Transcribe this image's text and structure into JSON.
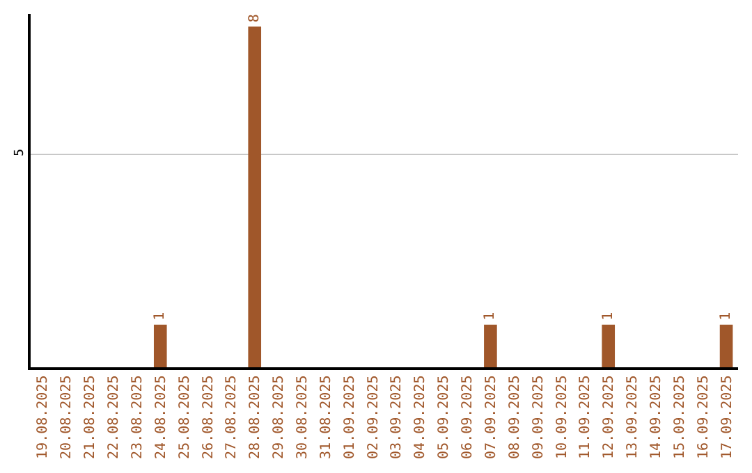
{
  "chart_data": {
    "type": "bar",
    "categories": [
      "19.08.2025",
      "20.08.2025",
      "21.08.2025",
      "22.08.2025",
      "23.08.2025",
      "24.08.2025",
      "25.08.2025",
      "26.08.2025",
      "27.08.2025",
      "28.08.2025",
      "29.08.2025",
      "30.08.2025",
      "31.08.2025",
      "01.09.2025",
      "02.09.2025",
      "03.09.2025",
      "04.09.2025",
      "05.09.2025",
      "06.09.2025",
      "07.09.2025",
      "08.09.2025",
      "09.09.2025",
      "10.09.2025",
      "11.09.2025",
      "12.09.2025",
      "13.09.2025",
      "14.09.2025",
      "15.09.2025",
      "16.09.2025",
      "17.09.2025"
    ],
    "values": [
      0,
      0,
      0,
      0,
      0,
      1,
      0,
      0,
      0,
      8,
      0,
      0,
      0,
      0,
      0,
      0,
      0,
      0,
      0,
      1,
      0,
      0,
      0,
      0,
      1,
      0,
      0,
      0,
      0,
      1
    ],
    "value_labels": [
      null,
      null,
      null,
      null,
      null,
      "1",
      null,
      null,
      null,
      "8",
      null,
      null,
      null,
      null,
      null,
      null,
      null,
      null,
      null,
      "1",
      null,
      null,
      null,
      null,
      "1",
      null,
      null,
      null,
      null,
      "1"
    ],
    "color": "#a0572a",
    "ylim": [
      0,
      8.3
    ],
    "yticks": [
      5
    ],
    "grid": "y"
  }
}
